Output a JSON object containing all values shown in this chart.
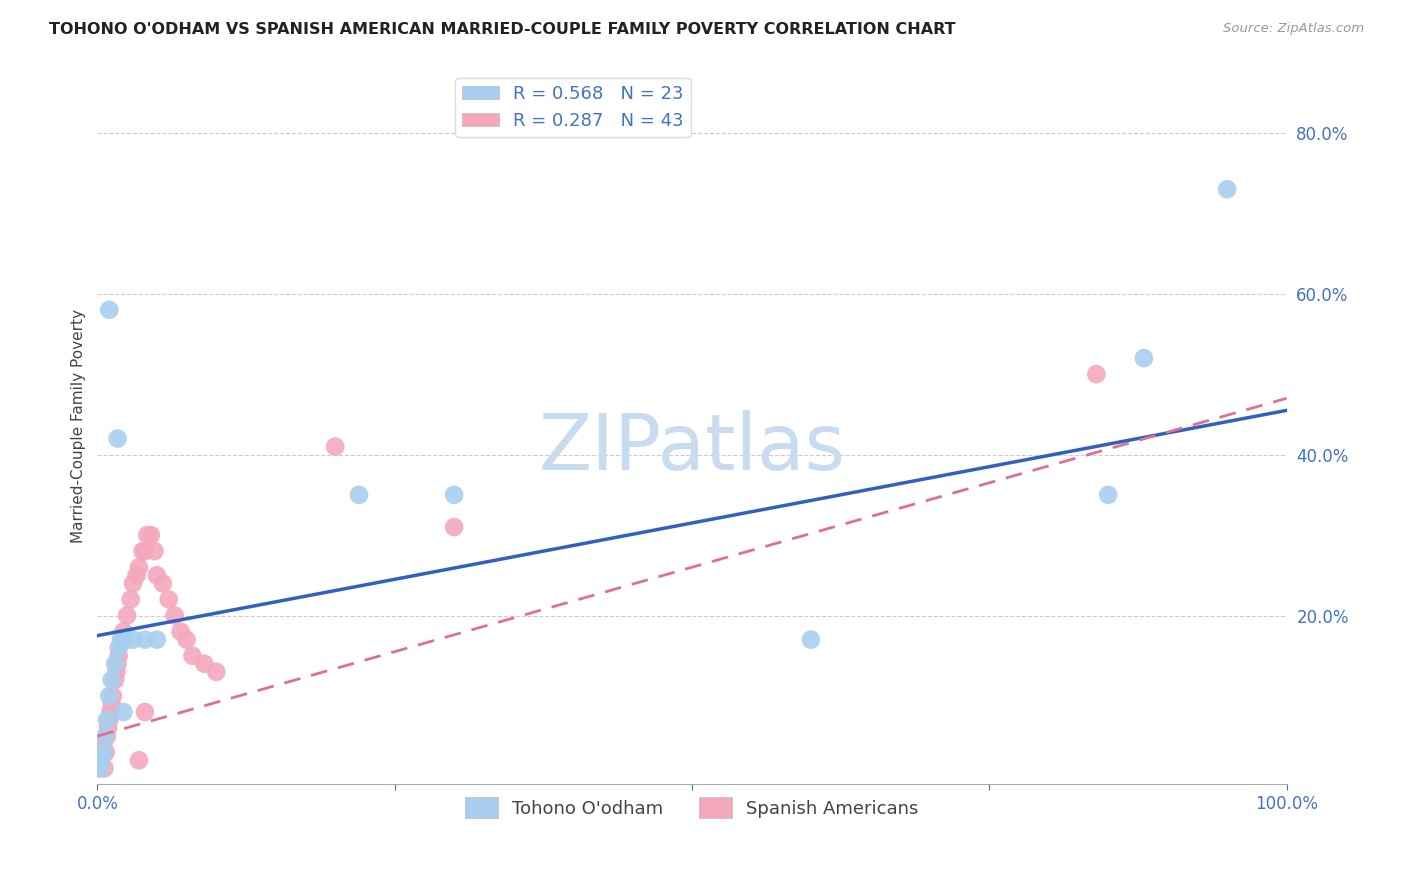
{
  "title": "TOHONO O'ODHAM VS SPANISH AMERICAN MARRIED-COUPLE FAMILY POVERTY CORRELATION CHART",
  "source": "Source: ZipAtlas.com",
  "ylabel": "Married-Couple Family Poverty",
  "legend_labels": [
    "Tohono O'odham",
    "Spanish Americans"
  ],
  "blue_R": 0.568,
  "blue_N": 23,
  "pink_R": 0.287,
  "pink_N": 43,
  "blue_color": "#A8CFF0",
  "pink_color": "#F4A8BE",
  "blue_line_color": "#3060C0",
  "pink_line_color": "#E07090",
  "watermark": "ZIPatlas",
  "watermark_color": "#C8DCF0",
  "xlim": [
    0,
    1.0
  ],
  "ylim": [
    -0.01,
    0.88
  ],
  "yticks": [
    0.2,
    0.4,
    0.6,
    0.8
  ],
  "ytick_labels": [
    "20.0%",
    "40.0%",
    "60.0%",
    "80.0%"
  ],
  "xticks": [
    0.0,
    0.25,
    0.5,
    0.75,
    1.0
  ],
  "xtick_labels": [
    "0.0%",
    "",
    "",
    "",
    "100.0%"
  ],
  "blue_points_x": [
    0.002,
    0.003,
    0.005,
    0.007,
    0.008,
    0.01,
    0.012,
    0.015,
    0.018,
    0.02,
    0.022,
    0.025,
    0.03,
    0.04,
    0.05,
    0.01,
    0.017,
    0.22,
    0.3,
    0.6,
    0.85,
    0.88,
    0.95
  ],
  "blue_points_y": [
    0.01,
    0.02,
    0.03,
    0.05,
    0.07,
    0.1,
    0.12,
    0.14,
    0.16,
    0.17,
    0.08,
    0.17,
    0.17,
    0.17,
    0.17,
    0.58,
    0.42,
    0.35,
    0.35,
    0.17,
    0.35,
    0.52,
    0.73
  ],
  "pink_points_x": [
    0.001,
    0.002,
    0.003,
    0.004,
    0.005,
    0.006,
    0.007,
    0.008,
    0.009,
    0.01,
    0.011,
    0.012,
    0.013,
    0.015,
    0.016,
    0.017,
    0.018,
    0.02,
    0.022,
    0.025,
    0.028,
    0.03,
    0.033,
    0.035,
    0.038,
    0.04,
    0.042,
    0.045,
    0.048,
    0.05,
    0.055,
    0.06,
    0.065,
    0.07,
    0.075,
    0.08,
    0.09,
    0.1,
    0.2,
    0.3,
    0.84,
    0.035,
    0.04
  ],
  "pink_points_y": [
    0.01,
    0.02,
    0.02,
    0.03,
    0.04,
    0.01,
    0.03,
    0.05,
    0.06,
    0.07,
    0.08,
    0.09,
    0.1,
    0.12,
    0.13,
    0.14,
    0.15,
    0.17,
    0.18,
    0.2,
    0.22,
    0.24,
    0.25,
    0.26,
    0.28,
    0.28,
    0.3,
    0.3,
    0.28,
    0.25,
    0.24,
    0.22,
    0.2,
    0.18,
    0.17,
    0.15,
    0.14,
    0.13,
    0.41,
    0.31,
    0.5,
    0.02,
    0.08
  ],
  "blue_intercept": 0.175,
  "blue_slope": 0.28,
  "pink_intercept": 0.05,
  "pink_slope": 0.42
}
